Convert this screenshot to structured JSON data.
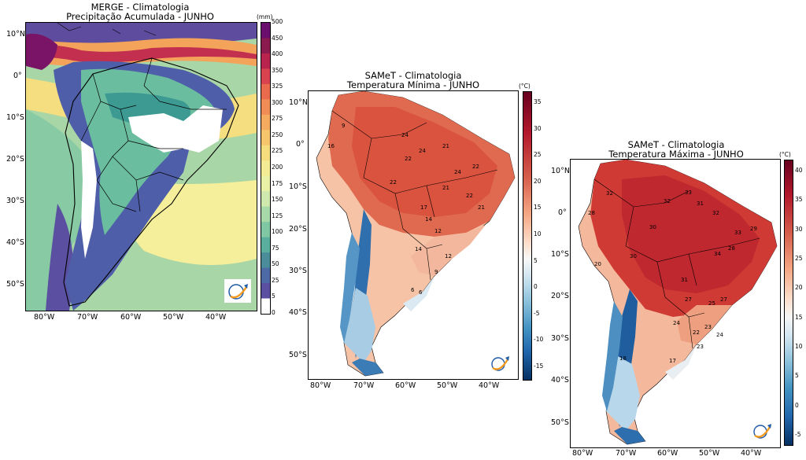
{
  "panels": [
    {
      "title_line1": "MERGE - Climatologia",
      "title_line2": "Precipitação Acumulada - JUNHO",
      "unit": "(mm)",
      "lat_labels": [
        "10°N",
        "0°",
        "10°S",
        "20°S",
        "30°S",
        "40°S",
        "50°S"
      ],
      "lon_labels": [
        "80°W",
        "70°W",
        "60°W",
        "50°W",
        "40°W"
      ],
      "cbar_labels": [
        "500",
        "450",
        "400",
        "350",
        "325",
        "300",
        "275",
        "250",
        "225",
        "200",
        "175",
        "150",
        "125",
        "100",
        "75",
        "50",
        "25",
        "5",
        "0"
      ],
      "cbar_colors": [
        "#6a0f6e",
        "#8b1a4f",
        "#b8244d",
        "#d8434f",
        "#e96a4d",
        "#f08c56",
        "#f5ab5f",
        "#f7c66c",
        "#f5dd7d",
        "#f3ec94",
        "#e9f1a6",
        "#cfe8ad",
        "#a8d9a8",
        "#80c8a3",
        "#5aae9d",
        "#4a8c9a",
        "#4d6aa6",
        "#5a4fa0",
        "#ffffff"
      ]
    },
    {
      "title_line1": "SAMeT - Climatologia",
      "title_line2": "Temperatura Mínima - JUNHO",
      "unit": "(°C)",
      "lat_labels": [
        "10°N",
        "0°",
        "10°S",
        "20°S",
        "30°S",
        "40°S",
        "50°S"
      ],
      "lon_labels": [
        "80°W",
        "70°W",
        "60°W",
        "50°W",
        "40°W"
      ],
      "cbar_labels": [
        "35",
        "30",
        "25",
        "20",
        "15",
        "10",
        "5",
        "0",
        "-5",
        "-10",
        "-15"
      ],
      "map_labels": [
        "9",
        "24",
        "24",
        "21",
        "16",
        "22",
        "24",
        "22",
        "22",
        "21",
        "22",
        "21",
        "17",
        "14",
        "12",
        "14",
        "12",
        "9",
        "6",
        "6"
      ]
    },
    {
      "title_line1": "SAMeT - Climatologia",
      "title_line2": "Temperatura Máxima - JUNHO",
      "unit": "(°C)",
      "lat_labels": [
        "10°N",
        "0°",
        "10°S",
        "20°S",
        "30°S",
        "40°S",
        "50°S"
      ],
      "lon_labels": [
        "80°W",
        "70°W",
        "60°W",
        "50°W",
        "40°W"
      ],
      "cbar_labels": [
        "40",
        "35",
        "30",
        "25",
        "20",
        "15",
        "10",
        "5",
        "0",
        "-5"
      ],
      "map_labels": [
        "28",
        "32",
        "32",
        "33",
        "31",
        "30",
        "32",
        "34",
        "33",
        "29",
        "20",
        "31",
        "30",
        "28",
        "27",
        "25",
        "27",
        "24",
        "22",
        "23",
        "23",
        "24",
        "18",
        "17"
      ]
    }
  ]
}
